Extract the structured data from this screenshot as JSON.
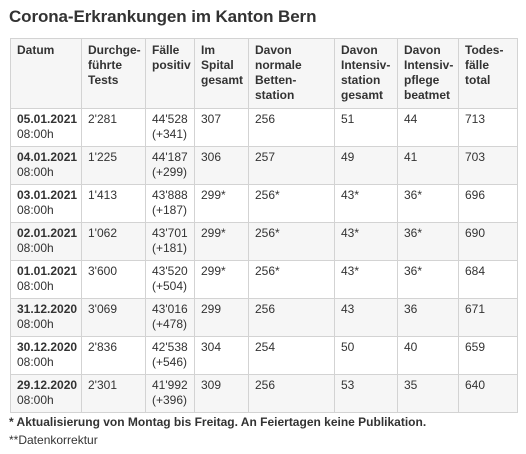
{
  "title": "Corona-Erkrankungen im Kanton Bern",
  "columns": [
    {
      "lines": [
        "Datum"
      ]
    },
    {
      "lines": [
        "Durchge-",
        "führte",
        "Tests"
      ]
    },
    {
      "lines": [
        "Fälle",
        "positiv"
      ]
    },
    {
      "lines": [
        "Im",
        "Spital",
        "gesamt"
      ]
    },
    {
      "lines": [
        "Davon",
        "normale",
        "Betten-",
        "station"
      ]
    },
    {
      "lines": [
        "Davon",
        "Intensiv-",
        "station",
        "gesamt"
      ]
    },
    {
      "lines": [
        "Davon",
        "Intensiv-",
        "pflege",
        "beatmet"
      ]
    },
    {
      "lines": [
        "Todes-",
        "fälle",
        "total"
      ]
    }
  ],
  "rows": [
    {
      "date": "05.01.2021",
      "time": "08:00h",
      "tests": "2'281",
      "cases": "44'528",
      "delta": "(+341)",
      "hospital": "307",
      "normal": "256",
      "icu": "51",
      "ventilated": "44",
      "deaths": "713"
    },
    {
      "date": "04.01.2021",
      "time": "08:00h",
      "tests": "1'225",
      "cases": "44'187",
      "delta": "(+299)",
      "hospital": "306",
      "normal": "257",
      "icu": "49",
      "ventilated": "41",
      "deaths": "703"
    },
    {
      "date": "03.01.2021",
      "time": "08:00h",
      "tests": "1'413",
      "cases": "43'888",
      "delta": "(+187)",
      "hospital": "299*",
      "normal": "256*",
      "icu": "43*",
      "ventilated": "36*",
      "deaths": "696"
    },
    {
      "date": "02.01.2021",
      "time": "08:00h",
      "tests": "1'062",
      "cases": "43'701",
      "delta": "(+181)",
      "hospital": "299*",
      "normal": "256*",
      "icu": "43*",
      "ventilated": "36*",
      "deaths": "690"
    },
    {
      "date": "01.01.2021",
      "time": "08:00h",
      "tests": "3'600",
      "cases": "43'520",
      "delta": "(+504)",
      "hospital": "299*",
      "normal": "256*",
      "icu": "43*",
      "ventilated": "36*",
      "deaths": "684"
    },
    {
      "date": "31.12.2020",
      "time": "08:00h",
      "tests": "3'069",
      "cases": "43'016",
      "delta": "(+478)",
      "hospital": "299",
      "normal": "256",
      "icu": "43",
      "ventilated": "36",
      "deaths": "671"
    },
    {
      "date": "30.12.2020",
      "time": "08:00h",
      "tests": "2'836",
      "cases": "42'538",
      "delta": "(+546)",
      "hospital": "304",
      "normal": "254",
      "icu": "50",
      "ventilated": "40",
      "deaths": "659"
    },
    {
      "date": "29.12.2020",
      "time": "08:00h",
      "tests": "2'301",
      "cases": "41'992",
      "delta": "(+396)",
      "hospital": "309",
      "normal": "256",
      "icu": "53",
      "ventilated": "35",
      "deaths": "640"
    }
  ],
  "footnotes": {
    "asterisk": "* Aktualisierung von Montag bis Freitag. An Feiertagen keine Publikation.",
    "correction": "**Datenkorrektur"
  },
  "colors": {
    "text": "#333333",
    "border": "#d3d3d3",
    "header_bg": "#f6f6f6",
    "alt_row_bg": "#f6f6f6"
  }
}
